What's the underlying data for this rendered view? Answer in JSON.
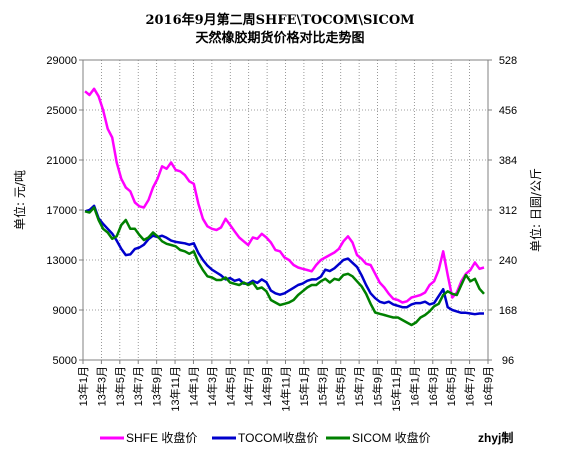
{
  "chart_data": {
    "type": "line",
    "title": "2016年9月第二周SHFE\\TOCOM\\SICOM",
    "subtitle": "天然橡胶期货价格对比走势图",
    "ylabel": "单位: 元/吨",
    "y2label": "单位: 日圆/公斤",
    "credit": "zhyj制",
    "ylim": [
      5000,
      29000
    ],
    "y2lim": [
      96,
      528
    ],
    "yticks": [
      5000,
      9000,
      13000,
      17000,
      21000,
      25000,
      29000
    ],
    "y2ticks": [
      96,
      168,
      240,
      312,
      384,
      456,
      528
    ],
    "xticks": [
      "13年1月",
      "13年3月",
      "13年5月",
      "13年7月",
      "13年9月",
      "13年11月",
      "14年1月",
      "14年3月",
      "14年5月",
      "14年7月",
      "14年9月",
      "14年11月",
      "15年1月",
      "15年3月",
      "15年5月",
      "15年7月",
      "15年9月",
      "15年11月",
      "16年1月",
      "16年3月",
      "16年5月",
      "16年7月",
      "16年9月"
    ],
    "grid": true,
    "legend_position": "bottom",
    "series": [
      {
        "name": "SHFE 收盘价",
        "axis": "left",
        "color": "#ff00ff",
        "values": [
          26500,
          26200,
          26700,
          26100,
          25000,
          23500,
          22800,
          20800,
          19500,
          18800,
          18500,
          17600,
          17300,
          17200,
          17800,
          18800,
          19500,
          20500,
          20300,
          20800,
          20200,
          20100,
          19800,
          19300,
          19100,
          17500,
          16300,
          15700,
          15500,
          15400,
          15600,
          16300,
          15800,
          15300,
          14800,
          14500,
          14200,
          14800,
          14700,
          15100,
          14800,
          14400,
          13800,
          13700,
          13200,
          13000,
          12600,
          12400,
          12300,
          12200,
          12100,
          12600,
          13000,
          13200,
          13400,
          13600,
          13900,
          14500,
          14900,
          14400,
          13400,
          13100,
          12700,
          12600,
          11900,
          11200,
          10800,
          10300,
          9900,
          9800,
          9600,
          9700,
          10000,
          10100,
          10200,
          10400,
          11000,
          11300,
          12200,
          13700,
          11800,
          10000,
          10400,
          11300,
          11900,
          12200,
          12800,
          12300,
          12400
        ]
      },
      {
        "name": "TOCOM收盘价",
        "axis": "right",
        "color": "#0000cc",
        "values": [
          310,
          312,
          318,
          300,
          292,
          285,
          278,
          268,
          256,
          247,
          248,
          256,
          258,
          262,
          270,
          275,
          273,
          275,
          272,
          268,
          266,
          265,
          264,
          262,
          264,
          250,
          240,
          232,
          226,
          222,
          218,
          212,
          214,
          210,
          212,
          206,
          206,
          210,
          207,
          212,
          208,
          196,
          192,
          190,
          192,
          196,
          200,
          204,
          206,
          210,
          212,
          212,
          216,
          226,
          224,
          228,
          234,
          240,
          242,
          236,
          230,
          218,
          204,
          192,
          185,
          180,
          178,
          180,
          176,
          174,
          172,
          172,
          176,
          178,
          178,
          180,
          176,
          178,
          188,
          198,
          172,
          168,
          166,
          164,
          164,
          163,
          162,
          163,
          163
        ]
      },
      {
        "name": "SICOM 收盘价",
        "axis": "left",
        "color": "#008000",
        "values": [
          16900,
          16800,
          17200,
          16200,
          15500,
          15200,
          14700,
          14900,
          15800,
          16200,
          15500,
          15500,
          15000,
          14600,
          14800,
          15200,
          14900,
          14500,
          14300,
          14200,
          14100,
          13800,
          13700,
          13500,
          13700,
          12800,
          12200,
          11700,
          11600,
          11400,
          11400,
          11600,
          11200,
          11100,
          11000,
          11200,
          11000,
          11200,
          10700,
          10800,
          10500,
          9800,
          9600,
          9400,
          9500,
          9600,
          9800,
          10200,
          10500,
          10800,
          11000,
          11000,
          11300,
          11500,
          11200,
          11500,
          11400,
          11800,
          11900,
          11700,
          11300,
          10900,
          10300,
          9500,
          8800,
          8700,
          8600,
          8500,
          8400,
          8400,
          8200,
          8000,
          7800,
          8000,
          8400,
          8600,
          8900,
          9300,
          9500,
          10200,
          10500,
          10300,
          10200,
          11000,
          11800,
          11300,
          11500,
          10700,
          10300
        ]
      }
    ]
  }
}
